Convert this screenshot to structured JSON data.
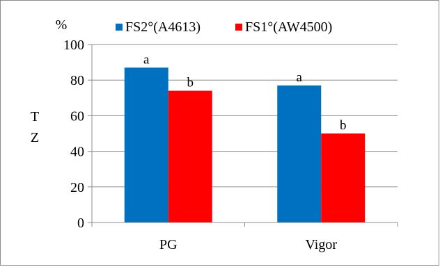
{
  "chart_data": {
    "type": "bar",
    "categories": [
      "PG",
      "Vigor"
    ],
    "series": [
      {
        "name": "FS2°(A4613)",
        "values": [
          87,
          77
        ],
        "labels": [
          "a",
          "a"
        ],
        "color": "#0070c0"
      },
      {
        "name": "FS1°(AW4500)",
        "values": [
          74,
          50
        ],
        "labels": [
          "b",
          "b"
        ],
        "color": "#ff0000"
      }
    ],
    "ylim": [
      0,
      100
    ],
    "yticks": [
      0,
      20,
      40,
      60,
      80,
      100
    ],
    "unit_label": "%",
    "ylabel_lines": [
      "T",
      "Z"
    ],
    "grid": true,
    "legend_position": "top"
  }
}
